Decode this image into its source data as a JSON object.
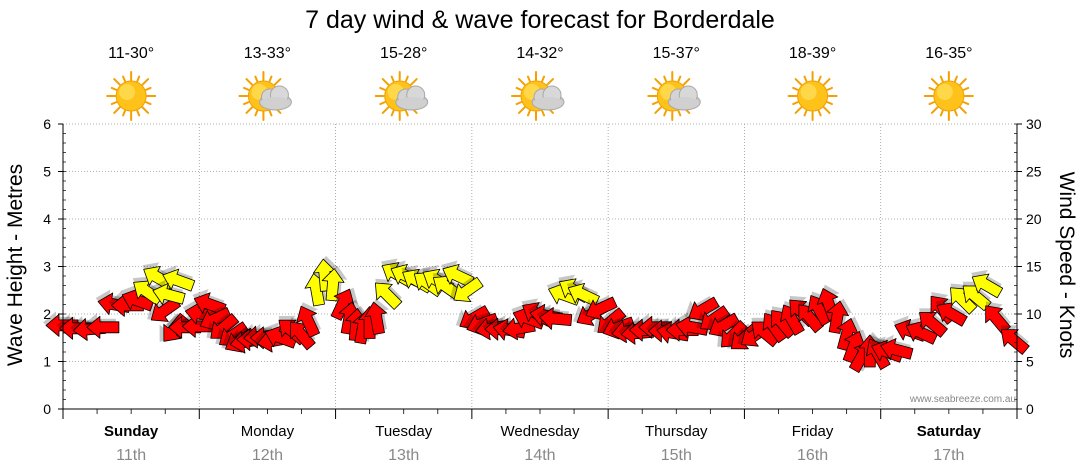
{
  "chart_data": {
    "type": "scatter",
    "title": "7 day wind & wave forecast for Borderdale",
    "ylabel": "Wave Height - Metres",
    "y2label": "Wind Speed - Knots",
    "ylim": [
      0,
      6
    ],
    "y2lim": [
      0,
      30
    ],
    "yticks": [
      "0",
      "1",
      "2",
      "3",
      "4",
      "5",
      "6"
    ],
    "y2ticks": [
      "0",
      "5",
      "10",
      "15",
      "20",
      "25",
      "30"
    ],
    "days": [
      {
        "name": "Sunday",
        "date": "11th",
        "temp": "11-30°",
        "icon": "sun-icon",
        "bold": true
      },
      {
        "name": "Monday",
        "date": "12th",
        "temp": "13-33°",
        "icon": "sun-cloud-icon",
        "bold": false
      },
      {
        "name": "Tuesday",
        "date": "13th",
        "temp": "15-28°",
        "icon": "sun-cloud-icon",
        "bold": false
      },
      {
        "name": "Wednesday",
        "date": "14th",
        "temp": "14-32°",
        "icon": "sun-cloud-icon",
        "bold": false
      },
      {
        "name": "Thursday",
        "date": "15th",
        "temp": "15-37°",
        "icon": "sun-cloud-icon",
        "bold": false
      },
      {
        "name": "Friday",
        "date": "16th",
        "temp": "18-39°",
        "icon": "sun-icon",
        "bold": false
      },
      {
        "name": "Saturday",
        "date": "17th",
        "temp": "16-35°",
        "icon": "sun-icon",
        "bold": true
      }
    ],
    "colors": {
      "strong": "#ff0000",
      "moderate": "#ffff00",
      "outline": "#000000",
      "grid": "#999999"
    },
    "credit": "www.seabreeze.com.au",
    "series": [
      {
        "name": "Wind (knots)",
        "points": [
          {
            "t": 0.0,
            "v": 8.8,
            "a": 180
          },
          {
            "t": 0.1,
            "v": 8.5,
            "a": 180
          },
          {
            "t": 0.2,
            "v": 8.4,
            "a": 175
          },
          {
            "t": 0.3,
            "v": 8.6,
            "a": 180
          },
          {
            "t": 0.38,
            "v": 11.0,
            "a": 190
          },
          {
            "t": 0.48,
            "v": 10.9,
            "a": 180
          },
          {
            "t": 0.55,
            "v": 11.4,
            "a": 200
          },
          {
            "t": 0.62,
            "v": 12.3,
            "a": 215
          },
          {
            "t": 0.7,
            "v": 13.8,
            "a": 210
          },
          {
            "t": 0.75,
            "v": 10.4,
            "a": 145
          },
          {
            "t": 0.82,
            "v": 8.5,
            "a": 130
          },
          {
            "t": 0.9,
            "v": 8.6,
            "a": 180
          },
          {
            "t": 1.0,
            "v": 8.7,
            "a": 180
          },
          {
            "t": 0.85,
            "v": 13.5,
            "a": 200
          },
          {
            "t": 0.78,
            "v": 12.0,
            "a": 195
          },
          {
            "t": 1.02,
            "v": 10.0,
            "a": 190
          },
          {
            "t": 1.08,
            "v": 11.0,
            "a": 200
          },
          {
            "t": 1.12,
            "v": 9.5,
            "a": 155
          },
          {
            "t": 1.18,
            "v": 8.6,
            "a": 140
          },
          {
            "t": 1.25,
            "v": 7.8,
            "a": 145
          },
          {
            "t": 1.3,
            "v": 7.2,
            "a": 150
          },
          {
            "t": 1.35,
            "v": 7.1,
            "a": 170
          },
          {
            "t": 1.4,
            "v": 7.3,
            "a": 180
          },
          {
            "t": 1.45,
            "v": 7.6,
            "a": 175
          },
          {
            "t": 1.5,
            "v": 7.5,
            "a": 180
          },
          {
            "t": 1.55,
            "v": 7.2,
            "a": 170
          },
          {
            "t": 1.6,
            "v": 7.5,
            "a": 200
          },
          {
            "t": 1.68,
            "v": 8.2,
            "a": 220
          },
          {
            "t": 1.75,
            "v": 7.8,
            "a": 230
          },
          {
            "t": 1.8,
            "v": 9.2,
            "a": 245
          },
          {
            "t": 1.86,
            "v": 12.5,
            "a": 260
          },
          {
            "t": 1.92,
            "v": 14.0,
            "a": 265
          },
          {
            "t": 1.98,
            "v": 13.0,
            "a": 275
          },
          {
            "t": 2.05,
            "v": 11.0,
            "a": 295
          },
          {
            "t": 2.1,
            "v": 9.5,
            "a": 280
          },
          {
            "t": 2.15,
            "v": 8.8,
            "a": 275
          },
          {
            "t": 2.2,
            "v": 8.5,
            "a": 280
          },
          {
            "t": 2.25,
            "v": 9.0,
            "a": 270
          },
          {
            "t": 2.3,
            "v": 9.5,
            "a": 260
          },
          {
            "t": 2.38,
            "v": 12.0,
            "a": 225
          },
          {
            "t": 2.45,
            "v": 14.2,
            "a": 210
          },
          {
            "t": 2.52,
            "v": 14.0,
            "a": 205
          },
          {
            "t": 2.6,
            "v": 13.5,
            "a": 210
          },
          {
            "t": 2.68,
            "v": 13.2,
            "a": 215
          },
          {
            "t": 2.75,
            "v": 13.5,
            "a": 210
          },
          {
            "t": 2.82,
            "v": 12.8,
            "a": 215
          },
          {
            "t": 2.9,
            "v": 14.0,
            "a": 205
          },
          {
            "t": 2.97,
            "v": 12.5,
            "a": 145
          },
          {
            "t": 3.02,
            "v": 9.6,
            "a": 150
          },
          {
            "t": 3.08,
            "v": 9.0,
            "a": 160
          },
          {
            "t": 3.15,
            "v": 8.5,
            "a": 170
          },
          {
            "t": 3.22,
            "v": 8.4,
            "a": 180
          },
          {
            "t": 3.28,
            "v": 8.3,
            "a": 190
          },
          {
            "t": 3.35,
            "v": 8.5,
            "a": 170
          },
          {
            "t": 3.42,
            "v": 9.5,
            "a": 200
          },
          {
            "t": 3.48,
            "v": 10.0,
            "a": 210
          },
          {
            "t": 3.55,
            "v": 9.8,
            "a": 190
          },
          {
            "t": 3.62,
            "v": 9.5,
            "a": 185
          },
          {
            "t": 3.68,
            "v": 12.0,
            "a": 200
          },
          {
            "t": 3.75,
            "v": 12.5,
            "a": 210
          },
          {
            "t": 3.82,
            "v": 12.0,
            "a": 205
          },
          {
            "t": 3.88,
            "v": 10.0,
            "a": 150
          },
          {
            "t": 3.95,
            "v": 10.6,
            "a": 155
          },
          {
            "t": 4.02,
            "v": 9.2,
            "a": 140
          },
          {
            "t": 4.08,
            "v": 8.6,
            "a": 160
          },
          {
            "t": 4.15,
            "v": 8.2,
            "a": 170
          },
          {
            "t": 4.22,
            "v": 8.0,
            "a": 175
          },
          {
            "t": 4.28,
            "v": 8.3,
            "a": 180
          },
          {
            "t": 4.35,
            "v": 8.6,
            "a": 180
          },
          {
            "t": 4.42,
            "v": 8.2,
            "a": 180
          },
          {
            "t": 4.48,
            "v": 8.0,
            "a": 190
          },
          {
            "t": 4.55,
            "v": 8.3,
            "a": 180
          },
          {
            "t": 4.62,
            "v": 8.6,
            "a": 190
          },
          {
            "t": 4.7,
            "v": 10.5,
            "a": 150
          },
          {
            "t": 4.78,
            "v": 9.5,
            "a": 145
          },
          {
            "t": 4.85,
            "v": 8.8,
            "a": 150
          },
          {
            "t": 4.92,
            "v": 7.8,
            "a": 135
          },
          {
            "t": 5.0,
            "v": 7.5,
            "a": 140
          },
          {
            "t": 5.08,
            "v": 7.8,
            "a": 145
          },
          {
            "t": 5.15,
            "v": 8.0,
            "a": 220
          },
          {
            "t": 5.22,
            "v": 8.6,
            "a": 235
          },
          {
            "t": 5.28,
            "v": 9.0,
            "a": 230
          },
          {
            "t": 5.35,
            "v": 9.4,
            "a": 240
          },
          {
            "t": 5.42,
            "v": 10.2,
            "a": 225
          },
          {
            "t": 5.48,
            "v": 9.6,
            "a": 230
          },
          {
            "t": 5.55,
            "v": 10.4,
            "a": 240
          },
          {
            "t": 5.62,
            "v": 11.0,
            "a": 250
          },
          {
            "t": 5.68,
            "v": 9.6,
            "a": 280
          },
          {
            "t": 5.75,
            "v": 7.8,
            "a": 285
          },
          {
            "t": 5.8,
            "v": 6.5,
            "a": 290
          },
          {
            "t": 5.86,
            "v": 5.5,
            "a": 300
          },
          {
            "t": 5.92,
            "v": 6.0,
            "a": 270
          },
          {
            "t": 5.98,
            "v": 5.8,
            "a": 240
          },
          {
            "t": 6.05,
            "v": 6.0,
            "a": 200
          },
          {
            "t": 6.12,
            "v": 6.2,
            "a": 195
          },
          {
            "t": 6.22,
            "v": 8.2,
            "a": 200
          },
          {
            "t": 6.3,
            "v": 8.0,
            "a": 205
          },
          {
            "t": 6.38,
            "v": 9.0,
            "a": 220
          },
          {
            "t": 6.45,
            "v": 10.5,
            "a": 230
          },
          {
            "t": 6.52,
            "v": 10.0,
            "a": 210
          },
          {
            "t": 6.6,
            "v": 11.5,
            "a": 225
          },
          {
            "t": 6.7,
            "v": 11.8,
            "a": 220
          },
          {
            "t": 6.78,
            "v": 13.0,
            "a": 210
          },
          {
            "t": 6.85,
            "v": 9.5,
            "a": 230
          },
          {
            "t": 6.98,
            "v": 7.2,
            "a": 220
          }
        ]
      }
    ]
  }
}
